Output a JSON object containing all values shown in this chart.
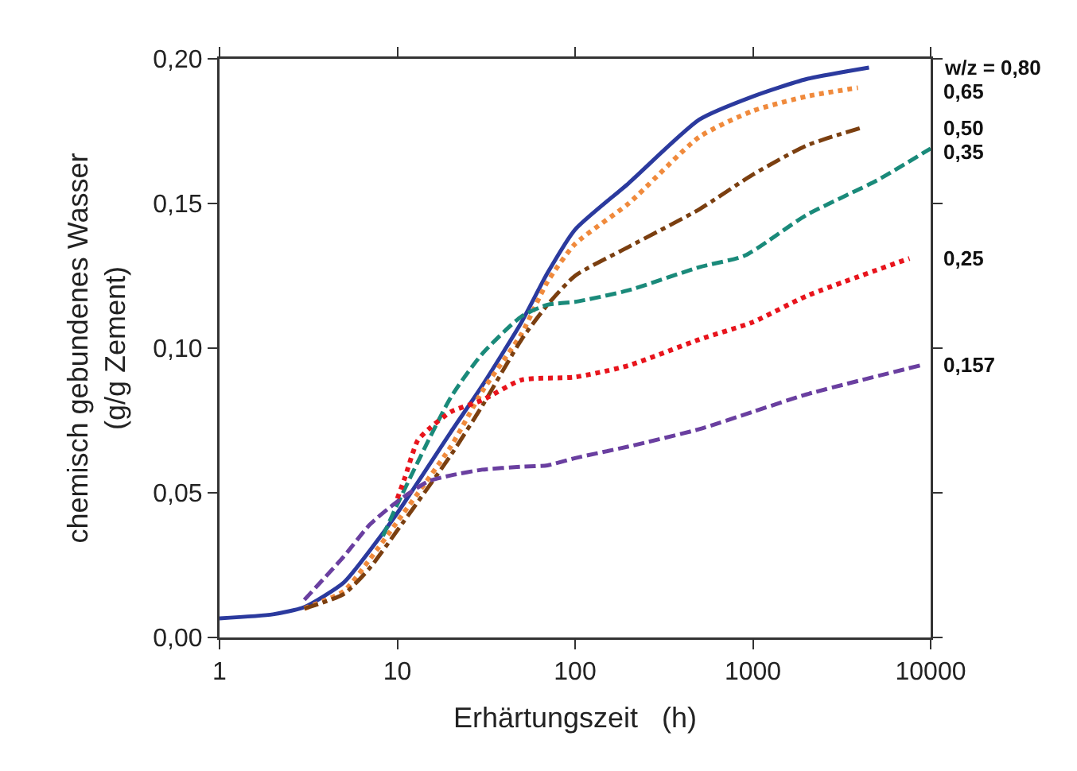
{
  "chart_data": {
    "type": "line",
    "xlabel": "Erhärtungszeit   (h)",
    "ylabel": "chemisch gebundenes Wasser\n(g/g Zement)",
    "log": "x",
    "xlim": [
      1,
      10000
    ],
    "xticks": [
      1,
      10,
      100,
      1000,
      10000
    ],
    "ylim": [
      0,
      0.2
    ],
    "yticks": [
      {
        "value": 0,
        "label": "0,00"
      },
      {
        "value": 0.05,
        "label": "0,05"
      },
      {
        "value": 0.1,
        "label": "0,10"
      },
      {
        "value": 0.15,
        "label": "0,15"
      },
      {
        "value": 0.2,
        "label": "0,20"
      }
    ],
    "grid": false,
    "legend": false,
    "marker": "none",
    "series": [
      {
        "name": "w/z = 0,80",
        "color": "#2b3a9e",
        "line_style": "solid",
        "x": [
          1,
          2,
          3,
          5,
          7,
          10,
          20,
          30,
          50,
          70,
          100,
          200,
          500,
          1000,
          2000,
          4500
        ],
        "values": [
          0.0066,
          0.008,
          0.0105,
          0.019,
          0.03,
          0.043,
          0.071,
          0.087,
          0.109,
          0.126,
          0.141,
          0.157,
          0.179,
          0.187,
          0.193,
          0.197
        ]
      },
      {
        "name": "0,65",
        "color": "#f08a3c",
        "line_style": "dotted",
        "x": [
          3,
          5,
          7,
          10,
          20,
          30,
          50,
          70,
          100,
          200,
          500,
          1000,
          2000,
          3900
        ],
        "values": [
          0.01,
          0.016,
          0.027,
          0.04,
          0.066,
          0.085,
          0.105,
          0.123,
          0.136,
          0.15,
          0.173,
          0.182,
          0.187,
          0.19
        ]
      },
      {
        "name": "0,50",
        "color": "#7b3f10",
        "line_style": "dashdot",
        "x": [
          3,
          5,
          7,
          10,
          20,
          30,
          50,
          70,
          100,
          200,
          500,
          1000,
          2000,
          4000
        ],
        "values": [
          0.01,
          0.015,
          0.024,
          0.037,
          0.063,
          0.08,
          0.103,
          0.115,
          0.125,
          0.135,
          0.148,
          0.16,
          0.17,
          0.176
        ]
      },
      {
        "name": "0,35",
        "color": "#1a8a7a",
        "line_style": "dashed",
        "x": [
          8.3,
          10,
          20,
          30,
          50,
          70,
          100,
          200,
          500,
          900,
          2000,
          5000,
          10000
        ],
        "values": [
          0.035,
          0.046,
          0.083,
          0.098,
          0.111,
          0.115,
          0.116,
          0.12,
          0.128,
          0.132,
          0.146,
          0.158,
          0.169
        ]
      },
      {
        "name": "0,25",
        "color": "#e8141c",
        "line_style": "dotted",
        "x": [
          10,
          11,
          13,
          15,
          20,
          30,
          50,
          100,
          200,
          500,
          1000,
          2000,
          7600
        ],
        "values": [
          0.048,
          0.055,
          0.068,
          0.072,
          0.078,
          0.082,
          0.089,
          0.09,
          0.094,
          0.103,
          0.109,
          0.118,
          0.131
        ]
      },
      {
        "name": "0,157",
        "color": "#6a3fa0",
        "line_style": "dashed",
        "x": [
          3,
          5,
          7,
          10,
          15,
          20,
          30,
          50,
          70,
          100,
          200,
          500,
          1000,
          2000,
          8700
        ],
        "values": [
          0.013,
          0.028,
          0.039,
          0.047,
          0.054,
          0.056,
          0.058,
          0.059,
          0.0595,
          0.062,
          0.066,
          0.072,
          0.078,
          0.084,
          0.094
        ]
      }
    ]
  }
}
